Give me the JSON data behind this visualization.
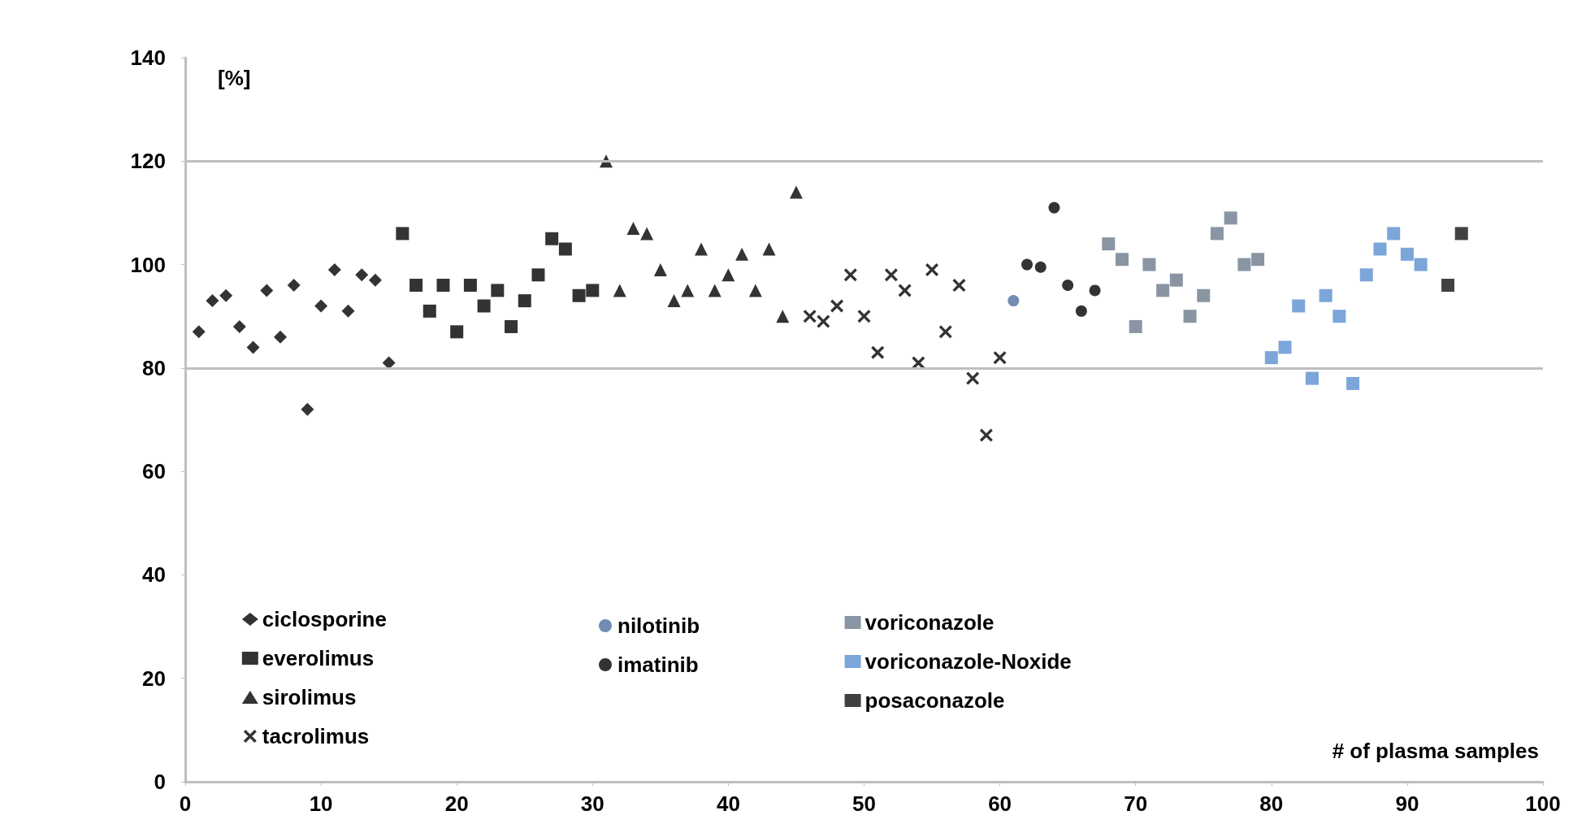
{
  "chart_data": {
    "type": "scatter",
    "xlabel": "# of plasma samples",
    "ylabel": "[%]",
    "xlim": [
      0,
      100
    ],
    "xticks": [
      0,
      10,
      20,
      30,
      40,
      50,
      60,
      70,
      80,
      90,
      100
    ],
    "ylim": [
      0,
      140
    ],
    "yticks": [
      0,
      20,
      40,
      60,
      80,
      100,
      120,
      140
    ],
    "grid": false,
    "legend": "bottom",
    "ref_lines": [
      {
        "axis": "y",
        "value": 80,
        "label": null,
        "color": "#bfbfbf"
      },
      {
        "axis": "y",
        "value": 120,
        "label": null,
        "color": "#bfbfbf"
      }
    ],
    "series": [
      {
        "name": "ciclosporine",
        "color": "#000000",
        "marker": "diamond",
        "x": [
          1,
          2,
          3,
          4,
          5,
          6,
          7,
          8,
          9,
          10,
          11,
          12,
          13,
          14,
          15
        ],
        "values": [
          87,
          93,
          94,
          88,
          84,
          95,
          86,
          96,
          72,
          92,
          99,
          91,
          98,
          97,
          81
        ]
      },
      {
        "name": "everolimus",
        "color": "#000000",
        "marker": "square",
        "x": [
          16,
          17,
          18,
          19,
          20,
          21,
          22,
          23,
          24,
          25,
          26,
          27,
          28,
          29,
          30
        ],
        "values": [
          106,
          96,
          91,
          96,
          87,
          96,
          92,
          95,
          88,
          93,
          98,
          105,
          103,
          94,
          95
        ]
      },
      {
        "name": "sirolimus",
        "color": "#000000",
        "marker": "triangle",
        "x": [
          31,
          32,
          33,
          34,
          35,
          36,
          37,
          38,
          39,
          40,
          41,
          42,
          43,
          44,
          45
        ],
        "values": [
          120,
          95,
          107,
          106,
          99,
          93,
          95,
          103,
          95,
          98,
          102,
          95,
          103,
          90,
          114
        ]
      },
      {
        "name": "tacrolimus",
        "color": "#000000",
        "marker": "cross",
        "x": [
          46,
          47,
          48,
          49,
          50,
          51,
          52,
          53,
          54,
          55,
          56,
          57,
          58,
          59,
          60
        ],
        "values": [
          90,
          89,
          92,
          98,
          90,
          83,
          98,
          95,
          81,
          99,
          87,
          96,
          78,
          67,
          82
        ]
      },
      {
        "name": "nilotinib",
        "color": "#4f6fa0",
        "marker": "circle",
        "x": [
          61
        ],
        "values": [
          93
        ]
      },
      {
        "name": "imatinib",
        "color": "#000000",
        "marker": "circle",
        "x": [
          62,
          63,
          64,
          65,
          66,
          67
        ],
        "values": [
          100,
          99.5,
          111,
          96,
          91,
          95
        ]
      },
      {
        "name": "voriconazole",
        "color": "#6d7b8d",
        "marker": "square",
        "x": [
          68,
          69,
          70,
          71,
          72,
          73,
          74,
          75,
          76,
          77,
          78,
          79
        ],
        "values": [
          104,
          101,
          88,
          100,
          95,
          97,
          90,
          94,
          106,
          109,
          100,
          101
        ]
      },
      {
        "name": "voriconazole-Noxide",
        "color": "#5b8fd0",
        "marker": "square",
        "x": [
          80,
          81,
          82,
          83,
          84,
          85,
          86,
          87,
          88,
          89,
          90,
          91
        ],
        "values": [
          82,
          84,
          92,
          78,
          94,
          90,
          77,
          98,
          103,
          106,
          102,
          100
        ]
      },
      {
        "name": "posaconazole",
        "color": "#111111",
        "marker": "square",
        "x": [
          93,
          94
        ],
        "values": [
          96,
          106
        ]
      }
    ]
  }
}
